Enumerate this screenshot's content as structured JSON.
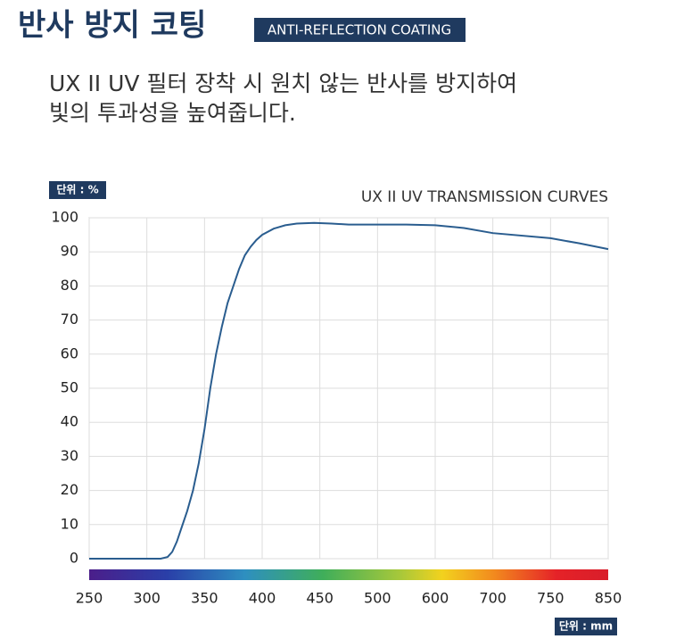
{
  "header": {
    "title": "반사 방지 코팅",
    "badge": "ANTI-REFLECTION COATING",
    "description": [
      "UX II UV 필터 장착 시 원치 않는 반사를 방지하여",
      "빛의 투과성을 높여줍니다."
    ]
  },
  "chart_data": {
    "type": "line",
    "title": "UX II UV TRANSMISSION CURVES",
    "y_unit": "단위 : %",
    "x_unit": "단위 : mm",
    "x": [
      250,
      300,
      312,
      318,
      322,
      326,
      330,
      335,
      340,
      345,
      350,
      355,
      360,
      365,
      370,
      375,
      380,
      385,
      390,
      395,
      400,
      410,
      420,
      430,
      445,
      460,
      475,
      500,
      550,
      600,
      650,
      700,
      750,
      800,
      850
    ],
    "series": [
      {
        "color": "#2a5d8f",
        "values": [
          0,
          0,
          0,
          0.5,
          2,
          5,
          9,
          14,
          20,
          28,
          38,
          50,
          60,
          68,
          75,
          80,
          85,
          89,
          91.5,
          93.5,
          95,
          96.8,
          97.8,
          98.3,
          98.5,
          98.3,
          98,
          98,
          98,
          97.8,
          97,
          95.5,
          94,
          92.5,
          90.8
        ]
      }
    ],
    "xlim": [
      250,
      850
    ],
    "xticks": [
      250,
      300,
      350,
      400,
      450,
      500,
      600,
      700,
      750,
      850
    ],
    "ylim": [
      0,
      100
    ],
    "yticks": [
      0,
      10,
      20,
      30,
      40,
      50,
      60,
      70,
      80,
      90,
      100
    ],
    "grid": true
  }
}
